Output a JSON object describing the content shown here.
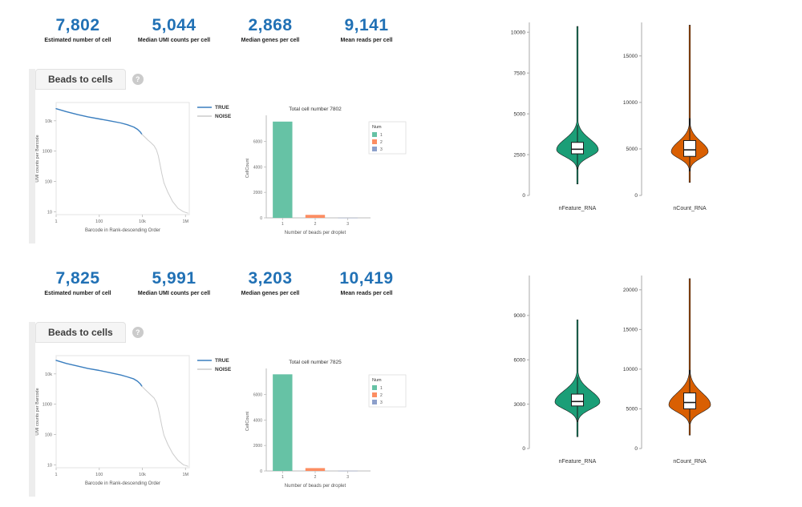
{
  "palette": {
    "metric_blue": "#2171b5",
    "true_blue": "#3a7ebf",
    "noise_gray": "#cccccc",
    "bar_teal": "#66c2a5",
    "bar_orange": "#fc8d62",
    "bar_periwinkle": "#8da0cb",
    "violin_green": "#1b9e77",
    "violin_orange": "#d95f02"
  },
  "sections": [
    {
      "metrics": [
        {
          "value": "7,802",
          "label": "Estimated number of cell"
        },
        {
          "value": "5,044",
          "label": "Median UMI counts per cell"
        },
        {
          "value": "2,868",
          "label": "Median genes per cell"
        },
        {
          "value": "9,141",
          "label": "Mean reads per cell"
        }
      ],
      "tab": {
        "label": "Beads to cells",
        "help": "?"
      }
    },
    {
      "metrics": [
        {
          "value": "7,825",
          "label": "Estimated number of cell"
        },
        {
          "value": "5,991",
          "label": "Median UMI counts per cell"
        },
        {
          "value": "3,203",
          "label": "Median genes per cell"
        },
        {
          "value": "10,419",
          "label": "Mean reads per cell"
        }
      ],
      "tab": {
        "label": "Beads to cells",
        "help": "?"
      }
    }
  ],
  "chart_data": [
    {
      "id": "knee-top",
      "type": "line",
      "xlabel": "Barcode in Rank-descending Order",
      "ylabel": "UMI counts per Barcode",
      "xscale": "log",
      "yscale": "log",
      "xlim": [
        1,
        1500000
      ],
      "ylim": [
        8,
        40000
      ],
      "xticks": [
        [
          1,
          "1"
        ],
        [
          100,
          "100"
        ],
        [
          10000,
          "10k"
        ],
        [
          1000000,
          "1M"
        ]
      ],
      "yticks": [
        [
          10,
          "10"
        ],
        [
          100,
          "100"
        ],
        [
          1000,
          "1000"
        ],
        [
          10000,
          "10k"
        ]
      ],
      "legend": [
        {
          "label": "TRUE",
          "color": "true_blue"
        },
        {
          "label": "NOISE",
          "color": "noise_gray"
        }
      ],
      "series": [
        {
          "name": "TRUE",
          "color": "true_blue",
          "points": [
            [
              1,
              25000
            ],
            [
              3,
              20000
            ],
            [
              10,
              16000
            ],
            [
              30,
              13500
            ],
            [
              100,
              11500
            ],
            [
              300,
              10000
            ],
            [
              1000,
              8500
            ],
            [
              2000,
              7400
            ],
            [
              4000,
              6200
            ],
            [
              6000,
              5200
            ],
            [
              8000,
              4300
            ],
            [
              9500,
              3600
            ]
          ]
        },
        {
          "name": "NOISE",
          "color": "noise_gray",
          "points": [
            [
              9500,
              3600
            ],
            [
              13000,
              2900
            ],
            [
              18000,
              2300
            ],
            [
              25000,
              1900
            ],
            [
              35000,
              1500
            ],
            [
              45000,
              1100
            ],
            [
              55000,
              700
            ],
            [
              65000,
              380
            ],
            [
              80000,
              180
            ],
            [
              100000,
              90
            ],
            [
              150000,
              45
            ],
            [
              250000,
              22
            ],
            [
              450000,
              13
            ],
            [
              800000,
              10
            ],
            [
              1300000,
              9
            ]
          ]
        }
      ]
    },
    {
      "id": "bar-top",
      "type": "bar",
      "title": "Total cell number 7802",
      "xlabel": "Number of beads per droplet",
      "ylabel": "CellCount",
      "legend_title": "Num",
      "categories": [
        "1",
        "2",
        "3"
      ],
      "values": [
        7560,
        235,
        7
      ],
      "colors": [
        "bar_teal",
        "bar_orange",
        "bar_periwinkle"
      ],
      "yticks": [
        0,
        2000,
        4000,
        6000
      ],
      "ylim": [
        0,
        7800
      ]
    },
    {
      "id": "violin-top",
      "type": "violin",
      "subplots": [
        {
          "label": "nFeature_RNA",
          "color": "violin_green",
          "ticks": [
            0,
            2500,
            5000,
            7500,
            10000
          ],
          "vmax": 10600,
          "halfwidth": 26,
          "stats": {
            "min": 700,
            "max": 10350,
            "mode": 2800,
            "sd_low": 420,
            "sd_high": 650,
            "q1": 2550,
            "median": 2830,
            "q3": 3250,
            "whisker_low": 1600,
            "whisker_high": 4300
          }
        },
        {
          "label": "nCount_RNA",
          "color": "violin_orange",
          "ticks": [
            0,
            5000,
            10000,
            15000
          ],
          "vmax": 18600,
          "halfwidth": 23,
          "stats": {
            "min": 1400,
            "max": 18300,
            "mode": 4700,
            "sd_low": 700,
            "sd_high": 1100,
            "q1": 4200,
            "median": 4900,
            "q3": 5900,
            "whisker_low": 2600,
            "whisker_high": 8300
          }
        }
      ]
    },
    {
      "id": "knee-bottom",
      "type": "line",
      "xlabel": "Barcode in Rank-descending Order",
      "ylabel": "UMI counts per Barcode",
      "xscale": "log",
      "yscale": "log",
      "xlim": [
        1,
        1500000
      ],
      "ylim": [
        8,
        40000
      ],
      "xticks": [
        [
          1,
          "1"
        ],
        [
          100,
          "100"
        ],
        [
          10000,
          "10k"
        ],
        [
          1000000,
          "1M"
        ]
      ],
      "yticks": [
        [
          10,
          "10"
        ],
        [
          100,
          "100"
        ],
        [
          1000,
          "1000"
        ],
        [
          10000,
          "10k"
        ]
      ],
      "legend": [
        {
          "label": "TRUE",
          "color": "true_blue"
        },
        {
          "label": "NOISE",
          "color": "noise_gray"
        }
      ],
      "series": [
        {
          "name": "TRUE",
          "color": "true_blue",
          "points": [
            [
              1,
              28000
            ],
            [
              3,
              22000
            ],
            [
              10,
              18000
            ],
            [
              30,
              15000
            ],
            [
              100,
              13000
            ],
            [
              300,
              11000
            ],
            [
              1000,
              9200
            ],
            [
              2000,
              8000
            ],
            [
              4000,
              6800
            ],
            [
              6000,
              5700
            ],
            [
              8000,
              4700
            ],
            [
              9600,
              3900
            ]
          ]
        },
        {
          "name": "NOISE",
          "color": "noise_gray",
          "points": [
            [
              9600,
              3900
            ],
            [
              13000,
              3100
            ],
            [
              18000,
              2500
            ],
            [
              25000,
              2000
            ],
            [
              35000,
              1600
            ],
            [
              45000,
              1150
            ],
            [
              55000,
              720
            ],
            [
              65000,
              400
            ],
            [
              80000,
              190
            ],
            [
              100000,
              95
            ],
            [
              150000,
              48
            ],
            [
              250000,
              24
            ],
            [
              450000,
              14
            ],
            [
              800000,
              10
            ],
            [
              1300000,
              9
            ]
          ]
        }
      ]
    },
    {
      "id": "bar-bottom",
      "type": "bar",
      "title": "Total cell number 7825",
      "xlabel": "Number of beads per droplet",
      "ylabel": "CellCount",
      "legend_title": "Num",
      "categories": [
        "1",
        "2",
        "3"
      ],
      "values": [
        7590,
        225,
        10
      ],
      "colors": [
        "bar_teal",
        "bar_orange",
        "bar_periwinkle"
      ],
      "yticks": [
        0,
        2000,
        4000,
        6000
      ],
      "ylim": [
        0,
        7800
      ]
    },
    {
      "id": "violin-bottom",
      "type": "violin",
      "subplots": [
        {
          "label": "nFeature_RNA",
          "color": "violin_green",
          "ticks": [
            0,
            3000,
            6000,
            9000
          ],
          "vmax": 11700,
          "halfwidth": 28,
          "stats": {
            "min": 800,
            "max": 8700,
            "mode": 3150,
            "sd_low": 480,
            "sd_high": 750,
            "q1": 2880,
            "median": 3180,
            "q3": 3680,
            "whisker_low": 1800,
            "whisker_high": 4850
          }
        },
        {
          "label": "nCount_RNA",
          "color": "violin_orange",
          "ticks": [
            0,
            5000,
            10000,
            15000,
            20000
          ],
          "vmax": 21800,
          "halfwidth": 26,
          "stats": {
            "min": 1700,
            "max": 21400,
            "mode": 5500,
            "sd_low": 900,
            "sd_high": 1500,
            "q1": 5000,
            "median": 5800,
            "q3": 7000,
            "whisker_low": 3100,
            "whisker_high": 9900
          }
        }
      ]
    }
  ]
}
